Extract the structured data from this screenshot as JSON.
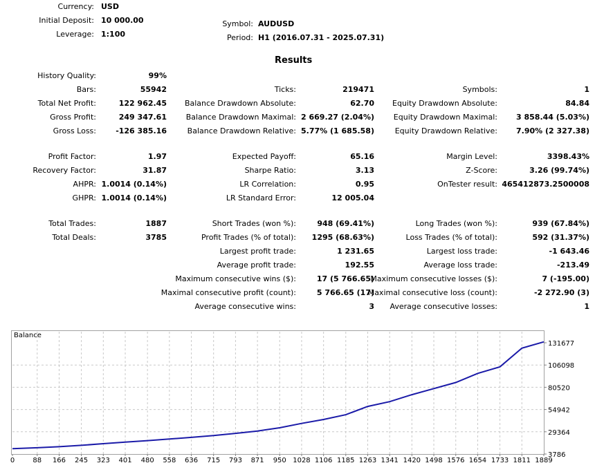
{
  "header": {
    "currency_label": "Currency:",
    "currency": "USD",
    "deposit_label": "Initial Deposit:",
    "deposit": "10 000.00",
    "leverage_label": "Leverage:",
    "leverage": "1:100",
    "symbol_label": "Symbol:",
    "symbol": "AUDUSD",
    "period_label": "Period:",
    "period": "H1 (2016.07.31 - 2025.07.31)"
  },
  "results_title": "Results",
  "col1": [
    {
      "label": "History Quality:",
      "value": "99%"
    },
    {
      "label": "Bars:",
      "value": "55942"
    },
    {
      "label": "Total Net Profit:",
      "value": "122 962.45"
    },
    {
      "label": "Gross Profit:",
      "value": "249 347.61"
    },
    {
      "label": "Gross Loss:",
      "value": "-126 385.16"
    },
    {
      "label": "Profit Factor:",
      "value": "1.97"
    },
    {
      "label": "Recovery Factor:",
      "value": "31.87"
    },
    {
      "label": "AHPR:",
      "value": "1.0014 (0.14%)"
    },
    {
      "label": "GHPR:",
      "value": "1.0014 (0.14%)"
    },
    {
      "label": "Total Trades:",
      "value": "1887"
    },
    {
      "label": "Total Deals:",
      "value": "3785"
    }
  ],
  "col2": [
    {
      "label": "Ticks:",
      "value": "219471"
    },
    {
      "label": "Balance Drawdown Absolute:",
      "value": "62.70"
    },
    {
      "label": "Balance Drawdown Maximal:",
      "value": "2 669.27 (2.04%)"
    },
    {
      "label": "Balance Drawdown Relative:",
      "value": "5.77% (1 685.58)"
    },
    {
      "label": "Expected Payoff:",
      "value": "65.16"
    },
    {
      "label": "Sharpe Ratio:",
      "value": "3.13"
    },
    {
      "label": "LR Correlation:",
      "value": "0.95"
    },
    {
      "label": "LR Standard Error:",
      "value": "12 005.04"
    },
    {
      "label": "Short Trades (won %):",
      "value": "948 (69.41%)"
    },
    {
      "label": "Profit Trades (% of total):",
      "value": "1295 (68.63%)"
    },
    {
      "label": "Largest profit trade:",
      "value": "1 231.65"
    },
    {
      "label": "Average profit trade:",
      "value": "192.55"
    },
    {
      "label": "Maximum consecutive wins ($):",
      "value": "17 (5 766.65)"
    },
    {
      "label": "Maximal consecutive profit (count):",
      "value": "5 766.65 (17)"
    },
    {
      "label": "Average consecutive wins:",
      "value": "3"
    }
  ],
  "col3": [
    {
      "label": "Symbols:",
      "value": "1"
    },
    {
      "label": "Equity Drawdown Absolute:",
      "value": "84.84"
    },
    {
      "label": "Equity Drawdown Maximal:",
      "value": "3 858.44 (5.03%)"
    },
    {
      "label": "Equity Drawdown Relative:",
      "value": "7.90% (2 327.38)"
    },
    {
      "label": "Margin Level:",
      "value": "3398.43%"
    },
    {
      "label": "Z-Score:",
      "value": "3.26 (99.74%)"
    },
    {
      "label": "OnTester result:",
      "value": "465412873.2500008"
    },
    {
      "label": "Long Trades (won %):",
      "value": "939 (67.84%)"
    },
    {
      "label": "Loss Trades (% of total):",
      "value": "592 (31.37%)"
    },
    {
      "label": "Largest loss trade:",
      "value": "-1 643.46"
    },
    {
      "label": "Average loss trade:",
      "value": "-213.49"
    },
    {
      "label": "Maximum consecutive losses ($):",
      "value": "7 (-195.00)"
    },
    {
      "label": "Maximal consecutive loss (count):",
      "value": "-2 272.90 (3)"
    },
    {
      "label": "Average consecutive losses:",
      "value": "1"
    }
  ],
  "chart_data": {
    "type": "line",
    "title": "Balance",
    "line_color": "#1a1aa8",
    "grid": true,
    "ylim": [
      3786,
      131677
    ],
    "xlim": [
      0,
      1889
    ],
    "y_ticks": [
      131677,
      106098,
      80520,
      54942,
      29364,
      3786
    ],
    "x_ticks": [
      0,
      88,
      166,
      245,
      323,
      401,
      480,
      558,
      636,
      715,
      793,
      871,
      950,
      1028,
      1106,
      1185,
      1263,
      1341,
      1420,
      1498,
      1576,
      1654,
      1733,
      1811,
      1889
    ],
    "series": [
      {
        "x": [
          0,
          88,
          166,
          245,
          323,
          401,
          480,
          558,
          636,
          715,
          793,
          871,
          950,
          1028,
          1106,
          1185,
          1263,
          1341,
          1420,
          1498,
          1576,
          1654,
          1733,
          1811,
          1889
        ],
        "values": [
          10000,
          11000,
          12200,
          13800,
          15700,
          17500,
          19200,
          21000,
          22900,
          25000,
          27500,
          30200,
          34000,
          39000,
          43500,
          49000,
          58500,
          64000,
          72000,
          79000,
          86000,
          96500,
          104000,
          125500,
          132700
        ]
      }
    ]
  }
}
